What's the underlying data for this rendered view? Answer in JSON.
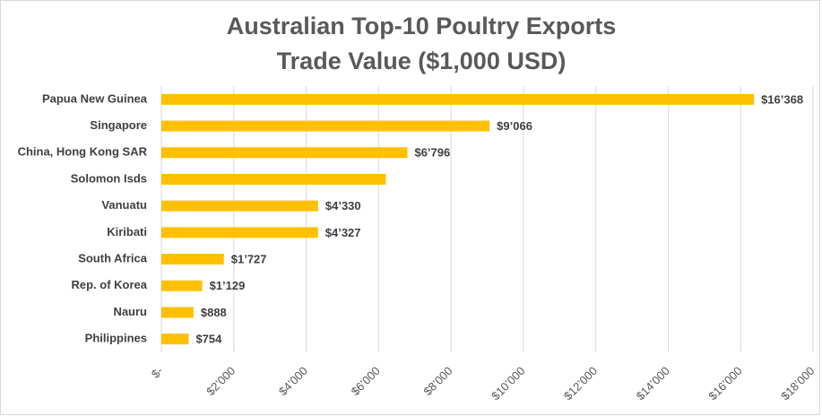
{
  "chart_data": {
    "type": "bar",
    "orientation": "horizontal",
    "title": "Australian Top-10 Poultry Exports",
    "subtitle": "Trade Value ($1,000 USD)",
    "categories": [
      "Papua New Guinea",
      "Singapore",
      "China, Hong Kong SAR",
      "Solomon Isds",
      "Vanuatu",
      "Kiribati",
      "South Africa",
      "Rep. of Korea",
      "Nauru",
      "Philippines"
    ],
    "values": [
      16368,
      9066,
      6796,
      6200,
      4330,
      4327,
      1727,
      1129,
      888,
      754
    ],
    "value_labels": [
      "$16’368",
      "$9’066",
      "$6’796",
      null,
      "$4’330",
      "$4’327",
      "$1’727",
      "$1’129",
      "$888",
      "$754"
    ],
    "color": "#ffc000",
    "xlim": [
      0,
      18000
    ],
    "xticks": [
      {
        "value": 0,
        "label": "$-"
      },
      {
        "value": 2000,
        "label": "$2’000"
      },
      {
        "value": 4000,
        "label": "$4’000"
      },
      {
        "value": 6000,
        "label": "$6’000"
      },
      {
        "value": 8000,
        "label": "$8’000"
      },
      {
        "value": 10000,
        "label": "$10’000"
      },
      {
        "value": 12000,
        "label": "$12’000"
      },
      {
        "value": 14000,
        "label": "$14’000"
      },
      {
        "value": 16000,
        "label": "$16’000"
      },
      {
        "value": 18000,
        "label": "$18’000"
      }
    ],
    "grid": true
  }
}
